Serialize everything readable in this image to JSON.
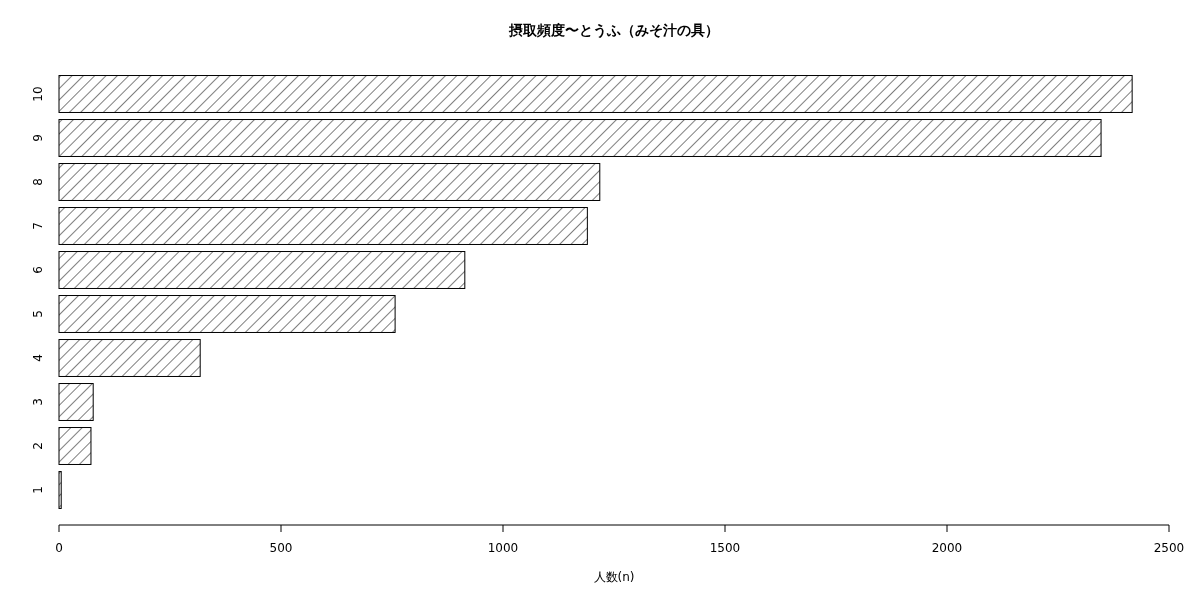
{
  "chart_data": {
    "type": "bar",
    "orientation": "horizontal",
    "title": "摂取頻度〜とうふ（みそ汁の具）",
    "xlabel": "人数(n)",
    "categories": [
      "10",
      "9",
      "8",
      "7",
      "6",
      "5",
      "4",
      "3",
      "2",
      "1"
    ],
    "values": [
      2417,
      2347,
      1218,
      1190,
      914,
      757,
      318,
      77,
      72,
      5
    ],
    "color": "#000000",
    "xlim": [
      0,
      2500
    ],
    "xticks": [
      0,
      500,
      1000,
      1500,
      2000,
      2500
    ]
  }
}
